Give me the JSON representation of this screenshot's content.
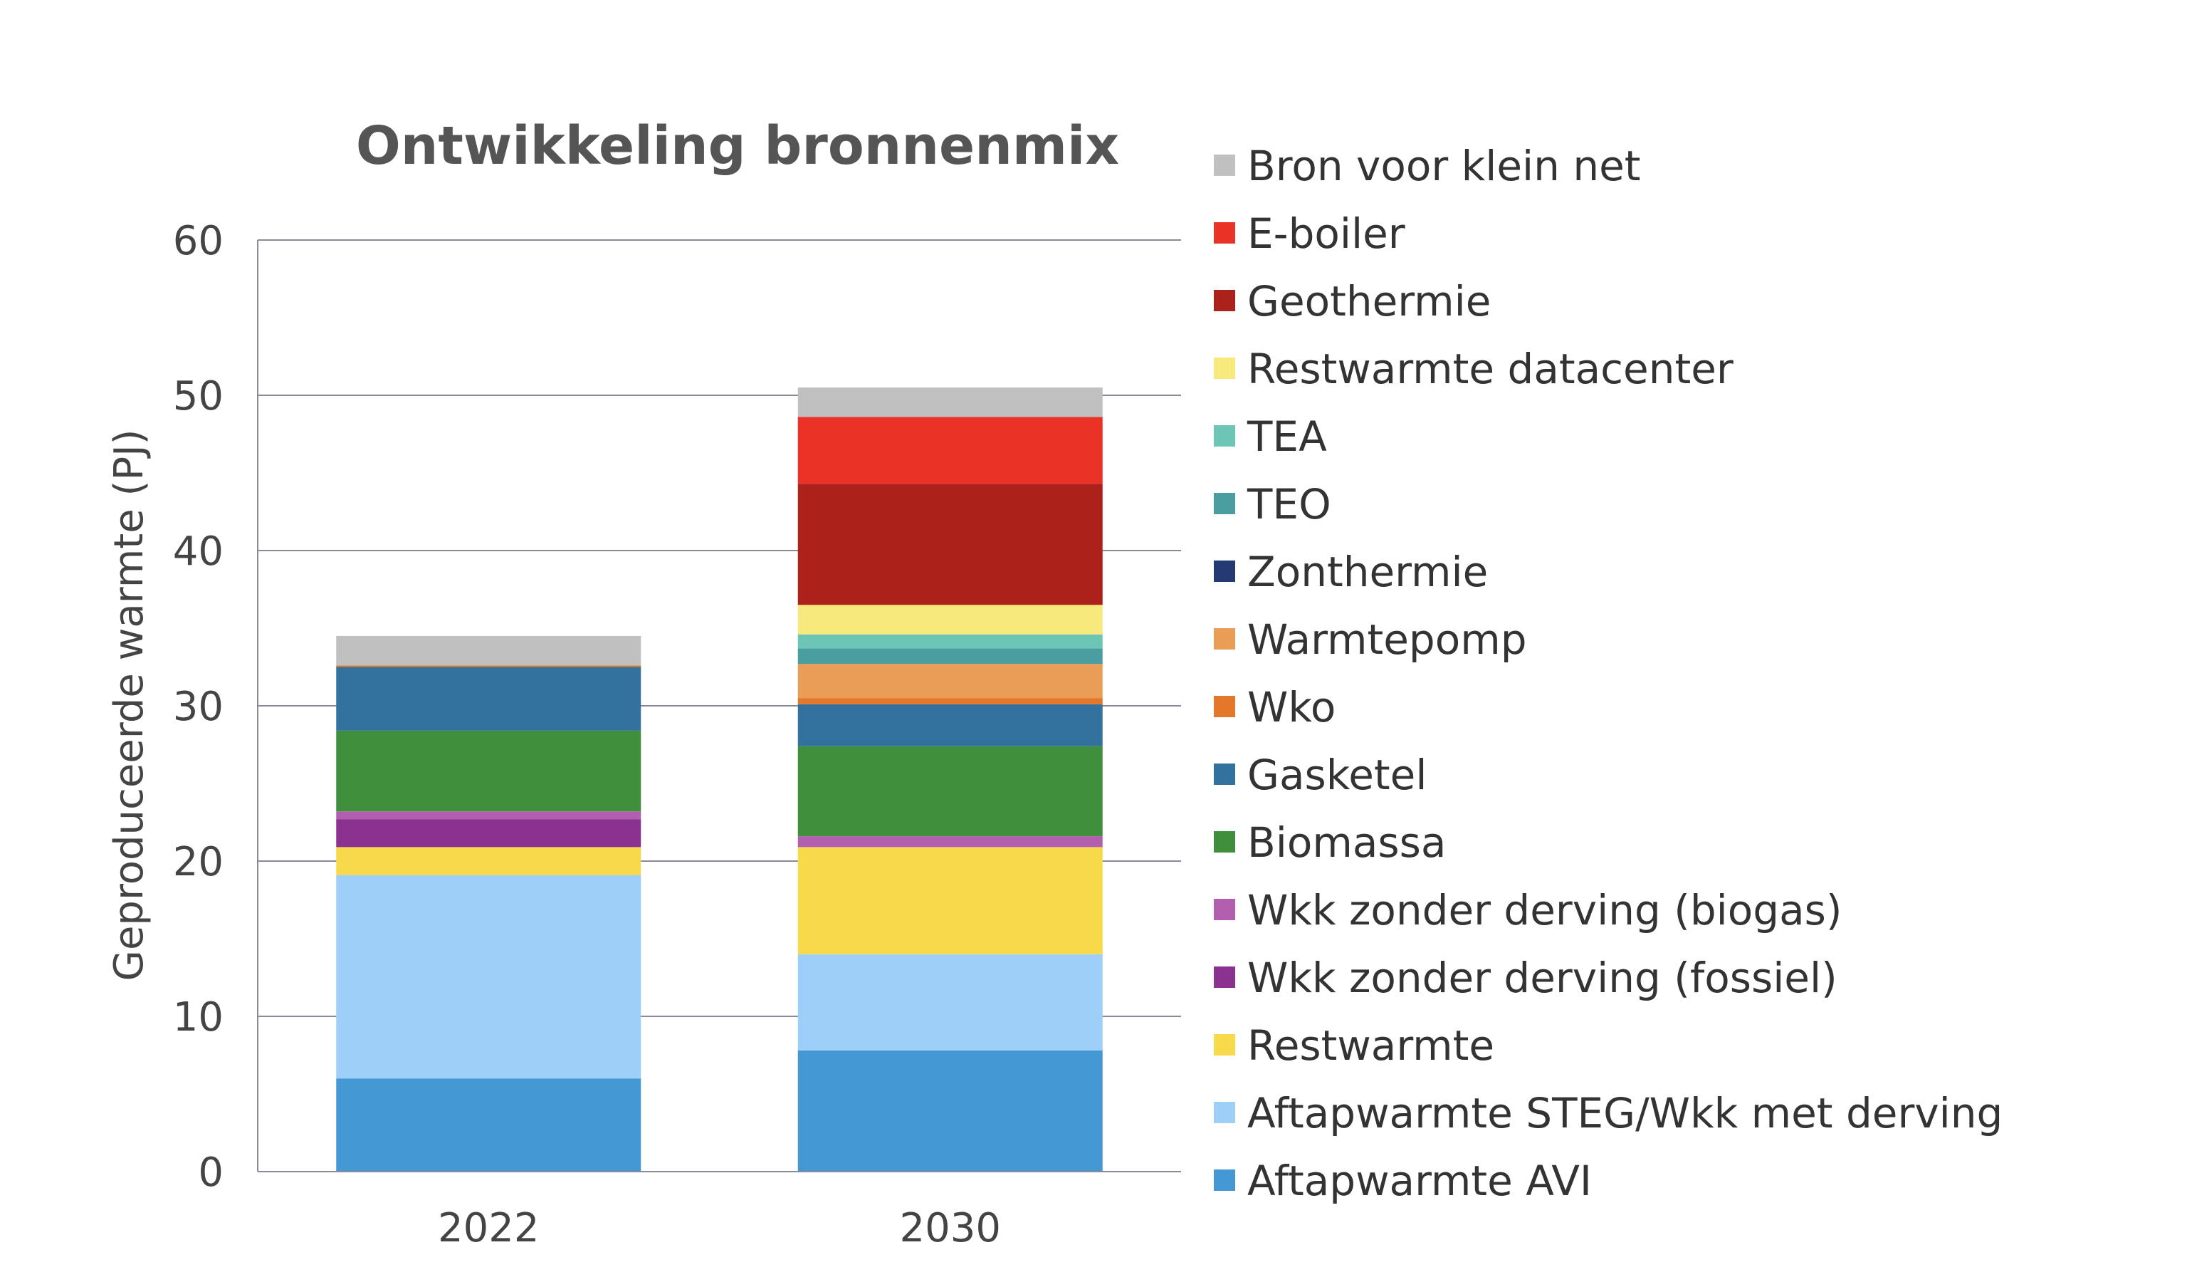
{
  "chart_data": {
    "type": "bar",
    "stacked": true,
    "title": "Ontwikkeling bronnenmix",
    "xlabel": "",
    "ylabel": "Geproduceerde warmte (PJ)",
    "ylim": [
      0,
      60
    ],
    "yticks": [
      0,
      10,
      20,
      30,
      40,
      50,
      60
    ],
    "grid": true,
    "legend_position": "right",
    "categories": [
      "2022",
      "2030"
    ],
    "series": [
      {
        "name": "Aftapwarmte AVI",
        "color": "#4499d4",
        "values": [
          6.0,
          7.8
        ]
      },
      {
        "name": "Aftapwarmte STEG/Wkk met derving",
        "color": "#9ecff9",
        "values": [
          13.1,
          6.2
        ]
      },
      {
        "name": "Restwarmte",
        "color": "#f7d94a",
        "values": [
          1.8,
          6.9
        ]
      },
      {
        "name": "Wkk zonder derving (fossiel)",
        "color": "#8b3190",
        "values": [
          1.8,
          0.0
        ]
      },
      {
        "name": "Wkk zonder derving (biogas)",
        "color": "#b35fb0",
        "values": [
          0.5,
          0.7
        ]
      },
      {
        "name": "Biomassa",
        "color": "#3f8f3c",
        "values": [
          5.2,
          5.8
        ]
      },
      {
        "name": "Gasketel",
        "color": "#33729f",
        "values": [
          4.1,
          2.7
        ]
      },
      {
        "name": "Wko",
        "color": "#e5772a",
        "values": [
          0.1,
          0.4
        ]
      },
      {
        "name": "Warmtepomp",
        "color": "#e99d57",
        "values": [
          0.0,
          2.2
        ]
      },
      {
        "name": "Zonthermie",
        "color": "#233a72",
        "values": [
          0.0,
          0.0
        ]
      },
      {
        "name": "TEO",
        "color": "#4a9ea0",
        "values": [
          0.0,
          1.0
        ]
      },
      {
        "name": "TEA",
        "color": "#6cc5b5",
        "values": [
          0.0,
          0.9
        ]
      },
      {
        "name": "Restwarmte datacenter",
        "color": "#f8e97c",
        "values": [
          0.0,
          1.9
        ]
      },
      {
        "name": "Geothermie",
        "color": "#ac2119",
        "values": [
          0.0,
          7.8
        ]
      },
      {
        "name": "E-boiler",
        "color": "#ea3226",
        "values": [
          0.0,
          4.3
        ]
      },
      {
        "name": "Bron voor klein net",
        "color": "#c0c0c0",
        "values": [
          1.9,
          1.9
        ]
      }
    ]
  }
}
